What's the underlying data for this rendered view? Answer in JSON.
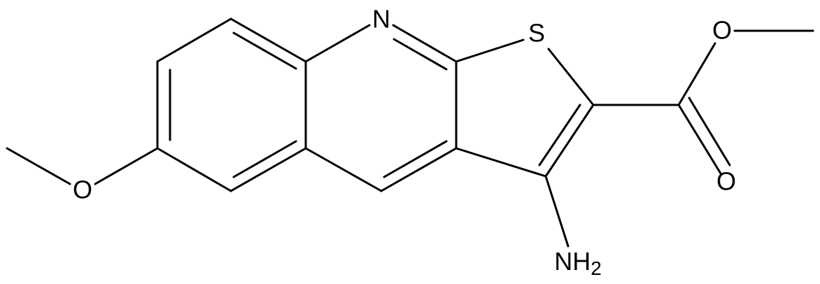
{
  "atoms": {
    "ring_nitrogen": "N",
    "sulfur": "S",
    "methoxy_oxygen": "O",
    "carbonyl_oxygen": "O",
    "ester_oxygen": "O"
  },
  "amine": {
    "text": "NH",
    "subscript": "2"
  }
}
